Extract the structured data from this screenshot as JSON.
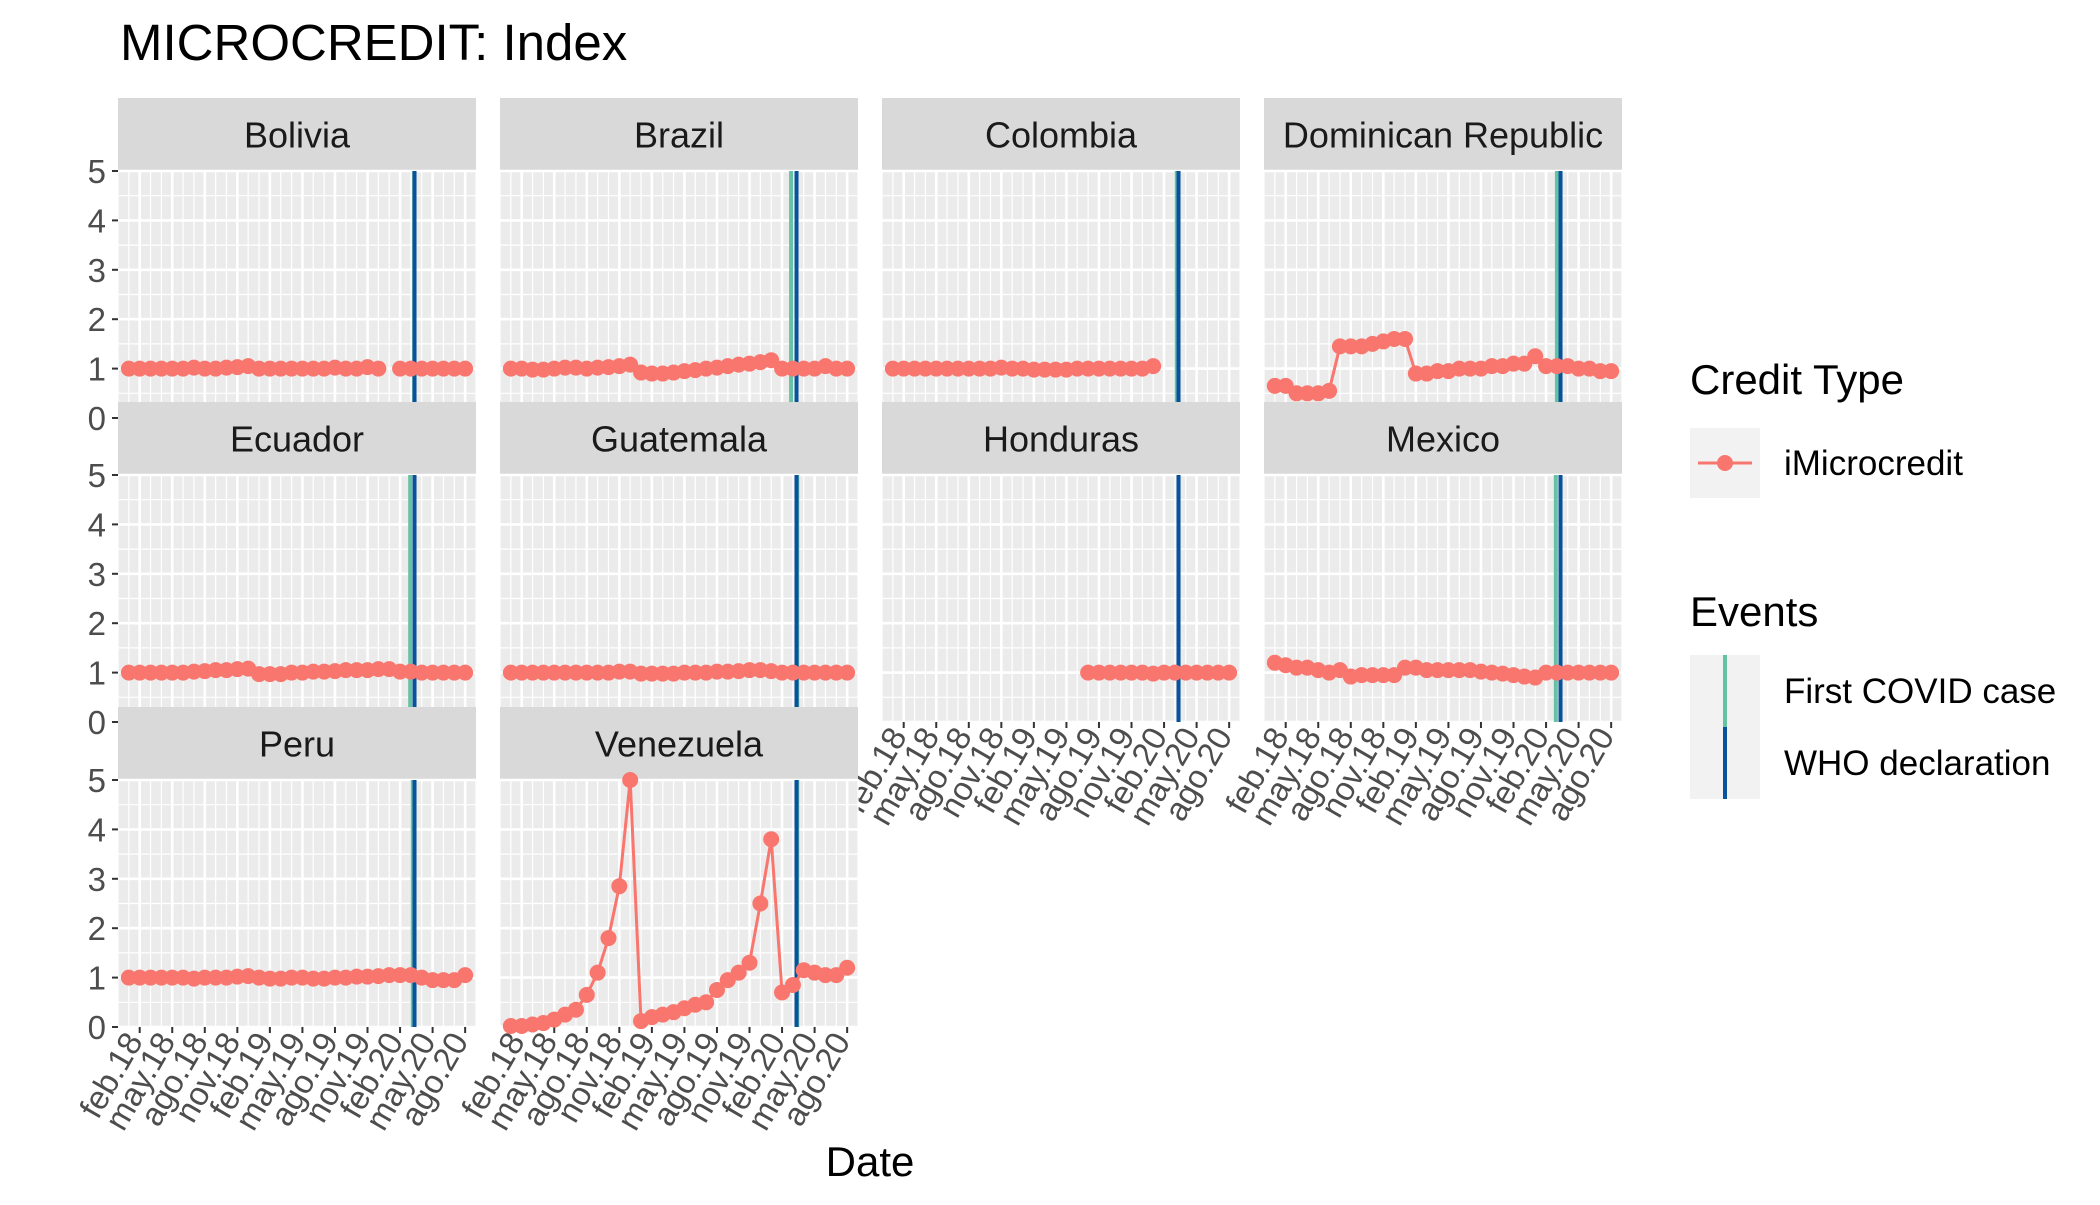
{
  "chart_data": {
    "type": "line",
    "title": "MICROCREDIT: Index",
    "xlabel": "Date",
    "ylabel": "",
    "ylim": [
      0,
      5
    ],
    "y_ticks": [
      0,
      1,
      2,
      3,
      4,
      5
    ],
    "x_range": [
      "2017-12",
      "2020-09"
    ],
    "x_tick_months": [
      "2018-02",
      "2018-05",
      "2018-08",
      "2018-11",
      "2019-02",
      "2019-05",
      "2019-08",
      "2019-11",
      "2020-02",
      "2020-05",
      "2020-08"
    ],
    "x_tick_labels": [
      "feb.18",
      "may.18",
      "ago.18",
      "nov.18",
      "feb.19",
      "may.19",
      "ago.19",
      "nov.19",
      "feb.20",
      "may.20",
      "ago.20"
    ],
    "grid": true,
    "facets": [
      "Bolivia",
      "Brazil",
      "Colombia",
      "Dominican Republic",
      "Ecuador",
      "Guatemala",
      "Honduras",
      "Mexico",
      "Peru",
      "Venezuela"
    ],
    "facet_columns": 4,
    "legend": {
      "placement": "right",
      "credit_title": "Credit Type",
      "credit_items": [
        {
          "name": "iMicrocredit",
          "color": "#F8766D"
        }
      ],
      "events_title": "Events",
      "event_items": [
        {
          "name": "First COVID case",
          "color": "#66C2A5"
        },
        {
          "name": "WHO declaration",
          "color": "#08519C"
        }
      ]
    },
    "events": [
      {
        "name": "First COVID case",
        "color": "#66C2A5",
        "dates": {
          "Bolivia": "2020-03-10",
          "Brazil": "2020-02-26",
          "Colombia": "2020-03-06",
          "Dominican Republic": "2020-03-01",
          "Ecuador": "2020-02-29",
          "Guatemala": "2020-03-13",
          "Honduras": "2020-03-11",
          "Mexico": "2020-02-28",
          "Peru": "2020-03-06",
          "Venezuela": "2020-03-13"
        }
      },
      {
        "name": "WHO declaration",
        "color": "#08519C",
        "dates": {
          "Bolivia": "2020-03-11",
          "Brazil": "2020-03-11",
          "Colombia": "2020-03-11",
          "Dominican Republic": "2020-03-11",
          "Ecuador": "2020-03-11",
          "Guatemala": "2020-03-11",
          "Honduras": "2020-03-11",
          "Mexico": "2020-03-11",
          "Peru": "2020-03-11",
          "Venezuela": "2020-03-11"
        }
      }
    ],
    "series": [
      {
        "name": "iMicrocredit",
        "facet": "Bolivia",
        "color": "#F8766D",
        "x": [
          "2018-01",
          "2018-02",
          "2018-03",
          "2018-04",
          "2018-05",
          "2018-06",
          "2018-07",
          "2018-08",
          "2018-09",
          "2018-10",
          "2018-11",
          "2018-12",
          "2019-01",
          "2019-02",
          "2019-03",
          "2019-04",
          "2019-05",
          "2019-06",
          "2019-07",
          "2019-08",
          "2019-09",
          "2019-10",
          "2019-11",
          "2019-12",
          null,
          "2020-02",
          "2020-03",
          "2020-04",
          "2020-05",
          "2020-06",
          "2020-07",
          "2020-08"
        ],
        "y": [
          1.0,
          1.0,
          1.0,
          1.0,
          1.0,
          1.0,
          1.02,
          1.0,
          1.0,
          1.02,
          1.03,
          1.05,
          1.0,
          1.0,
          1.0,
          1.0,
          1.0,
          1.0,
          1.0,
          1.02,
          1.0,
          1.0,
          1.03,
          1.0,
          null,
          1.0,
          1.0,
          1.0,
          1.0,
          1.0,
          1.0,
          1.0
        ]
      },
      {
        "name": "iMicrocredit",
        "facet": "Brazil",
        "color": "#F8766D",
        "x": [
          "2018-01",
          "2018-02",
          "2018-03",
          "2018-04",
          "2018-05",
          "2018-06",
          "2018-07",
          "2018-08",
          "2018-09",
          "2018-10",
          "2018-11",
          "2018-12",
          "2019-01",
          "2019-02",
          "2019-03",
          "2019-04",
          "2019-05",
          "2019-06",
          "2019-07",
          "2019-08",
          "2019-09",
          "2019-10",
          "2019-11",
          "2019-12",
          "2020-01",
          "2020-02",
          "2020-03",
          "2020-04",
          "2020-05",
          "2020-06",
          "2020-07",
          "2020-08"
        ],
        "y": [
          1.0,
          1.0,
          0.98,
          0.98,
          1.0,
          1.02,
          1.02,
          1.0,
          1.02,
          1.03,
          1.05,
          1.08,
          0.92,
          0.9,
          0.9,
          0.92,
          0.95,
          0.97,
          1.0,
          1.02,
          1.05,
          1.08,
          1.1,
          1.13,
          1.17,
          1.0,
          1.0,
          1.0,
          1.0,
          1.05,
          1.0,
          1.0
        ]
      },
      {
        "name": "iMicrocredit",
        "facet": "Colombia",
        "color": "#F8766D",
        "x": [
          "2018-01",
          "2018-02",
          "2018-03",
          "2018-04",
          "2018-05",
          "2018-06",
          "2018-07",
          "2018-08",
          "2018-09",
          "2018-10",
          "2018-11",
          "2018-12",
          "2019-01",
          "2019-02",
          "2019-03",
          "2019-04",
          "2019-05",
          "2019-06",
          "2019-07",
          "2019-08",
          "2019-09",
          "2019-10",
          "2019-11",
          "2019-12",
          "2020-01"
        ],
        "y": [
          1.0,
          1.0,
          1.0,
          1.0,
          1.0,
          1.0,
          1.0,
          1.0,
          1.0,
          1.0,
          1.02,
          1.0,
          1.0,
          0.98,
          0.98,
          0.98,
          0.98,
          1.0,
          1.0,
          1.0,
          1.0,
          1.0,
          1.0,
          1.0,
          1.05
        ]
      },
      {
        "name": "iMicrocredit",
        "facet": "Dominican Republic",
        "color": "#F8766D",
        "x": [
          "2018-01",
          "2018-02",
          "2018-03",
          "2018-04",
          "2018-05",
          "2018-06",
          "2018-07",
          "2018-08",
          "2018-09",
          "2018-10",
          "2018-11",
          "2018-12",
          "2019-01",
          "2019-02",
          "2019-03",
          "2019-04",
          "2019-05",
          "2019-06",
          "2019-07",
          "2019-08",
          "2019-09",
          "2019-10",
          "2019-11",
          "2019-12",
          "2020-01",
          "2020-02",
          "2020-03",
          "2020-04",
          "2020-05",
          "2020-06",
          "2020-07",
          "2020-08"
        ],
        "y": [
          0.65,
          0.65,
          0.5,
          0.5,
          0.5,
          0.55,
          1.45,
          1.45,
          1.45,
          1.5,
          1.55,
          1.6,
          1.6,
          0.9,
          0.9,
          0.95,
          0.95,
          1.0,
          1.0,
          1.0,
          1.05,
          1.05,
          1.1,
          1.1,
          1.25,
          1.05,
          1.05,
          1.05,
          1.0,
          1.0,
          0.95,
          0.95
        ]
      },
      {
        "name": "iMicrocredit",
        "facet": "Ecuador",
        "color": "#F8766D",
        "x": [
          "2018-01",
          "2018-02",
          "2018-03",
          "2018-04",
          "2018-05",
          "2018-06",
          "2018-07",
          "2018-08",
          "2018-09",
          "2018-10",
          "2018-11",
          "2018-12",
          "2019-01",
          "2019-02",
          "2019-03",
          "2019-04",
          "2019-05",
          "2019-06",
          "2019-07",
          "2019-08",
          "2019-09",
          "2019-10",
          "2019-11",
          "2019-12",
          "2020-01",
          "2020-02",
          "2020-03",
          "2020-04",
          "2020-05",
          "2020-06",
          "2020-07",
          "2020-08"
        ],
        "y": [
          1.0,
          1.0,
          1.0,
          1.0,
          1.0,
          1.0,
          1.02,
          1.03,
          1.05,
          1.05,
          1.07,
          1.08,
          0.97,
          0.97,
          0.97,
          1.0,
          1.0,
          1.02,
          1.02,
          1.03,
          1.05,
          1.05,
          1.05,
          1.07,
          1.07,
          1.02,
          1.02,
          1.0,
          1.0,
          1.0,
          1.0,
          1.0
        ]
      },
      {
        "name": "iMicrocredit",
        "facet": "Guatemala",
        "color": "#F8766D",
        "x": [
          "2018-01",
          "2018-02",
          "2018-03",
          "2018-04",
          "2018-05",
          "2018-06",
          "2018-07",
          "2018-08",
          "2018-09",
          "2018-10",
          "2018-11",
          "2018-12",
          "2019-01",
          "2019-02",
          "2019-03",
          "2019-04",
          "2019-05",
          "2019-06",
          "2019-07",
          "2019-08",
          "2019-09",
          "2019-10",
          "2019-11",
          "2019-12",
          "2020-01",
          "2020-02",
          "2020-03",
          "2020-04",
          "2020-05",
          "2020-06",
          "2020-07",
          "2020-08"
        ],
        "y": [
          1.0,
          1.0,
          1.0,
          1.0,
          1.0,
          1.0,
          1.0,
          1.0,
          1.0,
          1.0,
          1.02,
          1.02,
          0.98,
          0.98,
          0.98,
          0.98,
          1.0,
          1.0,
          1.0,
          1.02,
          1.02,
          1.03,
          1.05,
          1.05,
          1.03,
          1.0,
          1.0,
          1.0,
          1.0,
          1.0,
          1.0,
          1.0
        ]
      },
      {
        "name": "iMicrocredit",
        "facet": "Honduras",
        "color": "#F8766D",
        "x": [
          "2019-07",
          "2019-08",
          "2019-09",
          "2019-10",
          "2019-11",
          "2019-12",
          "2020-01",
          "2020-02",
          "2020-03",
          "2020-04",
          "2020-05",
          "2020-06",
          "2020-07",
          "2020-08"
        ],
        "y": [
          1.0,
          1.0,
          1.0,
          1.0,
          1.0,
          1.0,
          0.98,
          1.0,
          1.0,
          1.0,
          1.0,
          1.0,
          1.0,
          1.0
        ]
      },
      {
        "name": "iMicrocredit",
        "facet": "Mexico",
        "color": "#F8766D",
        "x": [
          "2018-01",
          "2018-02",
          "2018-03",
          "2018-04",
          "2018-05",
          "2018-06",
          "2018-07",
          "2018-08",
          "2018-09",
          "2018-10",
          "2018-11",
          "2018-12",
          "2019-01",
          "2019-02",
          "2019-03",
          "2019-04",
          "2019-05",
          "2019-06",
          "2019-07",
          "2019-08",
          "2019-09",
          "2019-10",
          "2019-11",
          "2019-12",
          "2020-01",
          "2020-02",
          "2020-03",
          "2020-04",
          "2020-05",
          "2020-06",
          "2020-07",
          "2020-08"
        ],
        "y": [
          1.2,
          1.15,
          1.1,
          1.1,
          1.05,
          1.0,
          1.05,
          0.92,
          0.95,
          0.95,
          0.95,
          0.95,
          1.1,
          1.1,
          1.05,
          1.05,
          1.05,
          1.05,
          1.05,
          1.02,
          1.0,
          0.98,
          0.95,
          0.92,
          0.9,
          1.0,
          1.0,
          1.0,
          1.0,
          1.0,
          1.0,
          1.0
        ]
      },
      {
        "name": "iMicrocredit",
        "facet": "Peru",
        "color": "#F8766D",
        "x": [
          "2018-01",
          "2018-02",
          "2018-03",
          "2018-04",
          "2018-05",
          "2018-06",
          "2018-07",
          "2018-08",
          "2018-09",
          "2018-10",
          "2018-11",
          "2018-12",
          "2019-01",
          "2019-02",
          "2019-03",
          "2019-04",
          "2019-05",
          "2019-06",
          "2019-07",
          "2019-08",
          "2019-09",
          "2019-10",
          "2019-11",
          "2019-12",
          "2020-01",
          "2020-02",
          "2020-03",
          "2020-04",
          "2020-05",
          "2020-06",
          "2020-07",
          "2020-08"
        ],
        "y": [
          1.0,
          1.0,
          1.0,
          1.0,
          1.0,
          1.0,
          0.98,
          1.0,
          1.0,
          1.0,
          1.02,
          1.03,
          1.0,
          0.98,
          0.98,
          1.0,
          1.0,
          0.98,
          0.98,
          1.0,
          1.0,
          1.02,
          1.02,
          1.03,
          1.05,
          1.05,
          1.05,
          1.0,
          0.95,
          0.95,
          0.95,
          1.05
        ]
      },
      {
        "name": "iMicrocredit",
        "facet": "Venezuela",
        "color": "#F8766D",
        "x": [
          "2018-01",
          "2018-02",
          "2018-03",
          "2018-04",
          "2018-05",
          "2018-06",
          "2018-07",
          "2018-08",
          "2018-09",
          "2018-10",
          "2018-11",
          "2018-12",
          "2019-01",
          "2019-02",
          "2019-03",
          "2019-04",
          "2019-05",
          "2019-06",
          "2019-07",
          "2019-08",
          "2019-09",
          "2019-10",
          "2019-11",
          "2019-12",
          "2020-01",
          "2020-02",
          "2020-03",
          "2020-04",
          "2020-05",
          "2020-06",
          "2020-07",
          "2020-08"
        ],
        "y": [
          0.02,
          0.02,
          0.05,
          0.08,
          0.15,
          0.25,
          0.35,
          0.65,
          1.1,
          1.8,
          2.85,
          5.0,
          0.12,
          0.2,
          0.25,
          0.3,
          0.38,
          0.45,
          0.5,
          0.75,
          0.95,
          1.1,
          1.3,
          2.5,
          3.8,
          0.7,
          0.85,
          1.15,
          1.1,
          1.05,
          1.05,
          1.2
        ]
      }
    ]
  }
}
